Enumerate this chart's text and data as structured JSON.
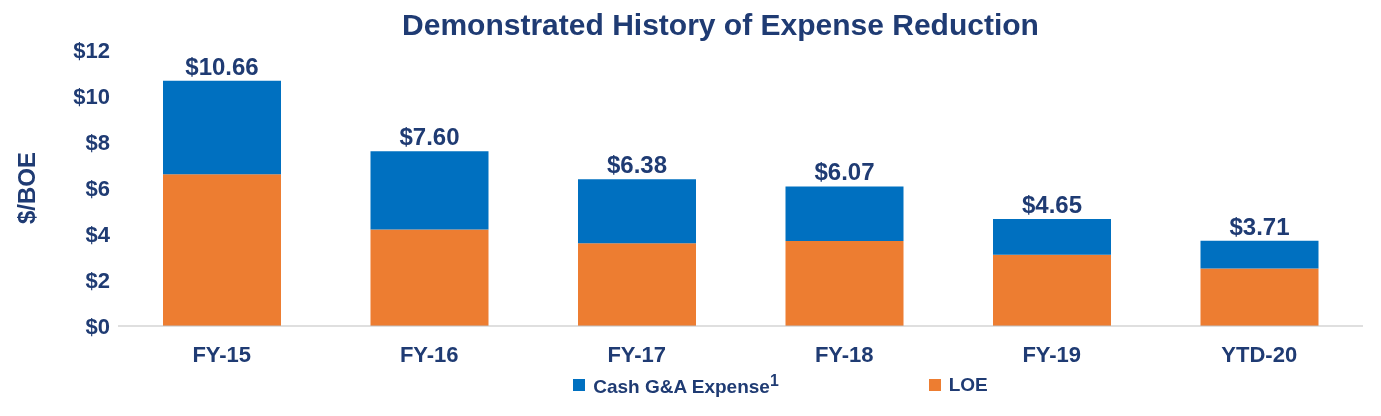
{
  "chart_data": {
    "type": "bar",
    "title": "Demonstrated History of Expense Reduction",
    "ylabel": "$/BOE",
    "categories": [
      "FY-15",
      "FY-16",
      "FY-17",
      "FY-18",
      "FY-19",
      "YTD-20"
    ],
    "series": [
      {
        "name": "LOE",
        "color": "#ed7d31",
        "values": [
          6.6,
          4.2,
          3.6,
          3.7,
          3.1,
          2.5
        ]
      },
      {
        "name": "Cash G&A Expense$^{1}$",
        "color": "#0070c0",
        "values": [
          4.06,
          3.4,
          2.78,
          2.37,
          1.55,
          1.21
        ]
      }
    ],
    "stacked": true,
    "totals": [
      "$10.66",
      "$7.60",
      "$6.38",
      "$6.07",
      "$4.65",
      "$3.71"
    ],
    "ylim": [
      0,
      12
    ],
    "yticks": [
      {
        "value": 0,
        "label": "$0"
      },
      {
        "value": 2,
        "label": "$2"
      },
      {
        "value": 4,
        "label": "$4"
      },
      {
        "value": 6,
        "label": "$6"
      },
      {
        "value": 8,
        "label": "$8"
      },
      {
        "value": 10,
        "label": "$10"
      },
      {
        "value": 12,
        "label": "$12"
      }
    ],
    "grid": false,
    "legend": "bottom"
  }
}
